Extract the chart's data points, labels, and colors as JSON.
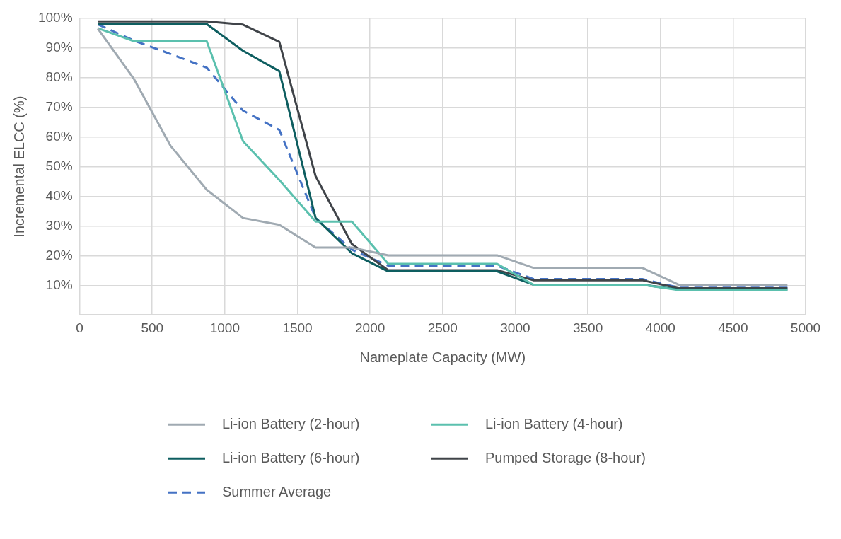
{
  "chart_data": {
    "type": "line",
    "xlabel": "Nameplate Capacity (MW)",
    "ylabel": "Incremental ELCC (%)",
    "x": [
      125,
      375,
      625,
      875,
      1125,
      1375,
      1625,
      1875,
      2125,
      2375,
      2625,
      2875,
      3125,
      3375,
      3625,
      3875,
      4125,
      4375,
      4625,
      4875
    ],
    "xlim": [
      0,
      5000
    ],
    "xticks": [
      0,
      500,
      1000,
      1500,
      2000,
      2500,
      3000,
      3500,
      4000,
      4500,
      5000
    ],
    "ylim": [
      0,
      100
    ],
    "yticks": [
      {
        "value": 0,
        "label": null
      },
      {
        "value": 10,
        "label": "10%"
      },
      {
        "value": 20,
        "label": "20%"
      },
      {
        "value": 30,
        "label": "30%"
      },
      {
        "value": 40,
        "label": "40%"
      },
      {
        "value": 50,
        "label": "50%"
      },
      {
        "value": 60,
        "label": "60%"
      },
      {
        "value": 70,
        "label": "70%"
      },
      {
        "value": 80,
        "label": "80%"
      },
      {
        "value": 90,
        "label": "90%"
      },
      {
        "value": 100,
        "label": "100%"
      }
    ],
    "grid": true,
    "legend": "bottom",
    "marker": "none",
    "series": [
      {
        "name": "Li-ion Battery (2-hour)",
        "color": "#a0aab2",
        "values": [
          96.6,
          79.5,
          57.1,
          42.2,
          32.7,
          30.4,
          22.7,
          22.7,
          20.1,
          20.1,
          20.1,
          20.1,
          15.9,
          15.9,
          15.9,
          15.9,
          10.2,
          10.2,
          10.2,
          10.2
        ]
      },
      {
        "name": "Li-ion Battery (4-hour)",
        "color": "#5bc0ae",
        "values": [
          96.7,
          92.3,
          92.3,
          92.3,
          58.6,
          45.5,
          31.5,
          31.5,
          17.2,
          17.2,
          17.2,
          17.2,
          10.2,
          10.2,
          10.2,
          10.2,
          8.4,
          8.4,
          8.4,
          8.4
        ]
      },
      {
        "name": "Li-ion Battery (6-hour)",
        "color": "#0e5e60",
        "values": [
          98.1,
          98.1,
          98.1,
          98.1,
          89.1,
          82.2,
          32.7,
          20.8,
          14.7,
          14.7,
          14.7,
          14.7,
          10.2,
          10.2,
          10.2,
          10.2,
          8.6,
          8.6,
          8.6,
          8.6
        ]
      },
      {
        "name": "Pumped Storage (8-hour)",
        "color": "#404449",
        "values": [
          99,
          99,
          99,
          99,
          97.9,
          92.1,
          46.8,
          23.9,
          15.1,
          15.1,
          15.1,
          15.1,
          11.7,
          11.7,
          11.7,
          11.7,
          9,
          9,
          9,
          9
        ]
      },
      {
        "name": "Summer Average",
        "color": "#4472c4",
        "line_style": "dashed",
        "values": [
          98,
          92.5,
          88,
          83.4,
          68.9,
          62.4,
          32.7,
          22,
          16.6,
          16.6,
          16.6,
          16.6,
          12.1,
          12.1,
          12.1,
          12.1,
          9.2,
          9.2,
          9.2,
          9.2
        ]
      }
    ]
  }
}
